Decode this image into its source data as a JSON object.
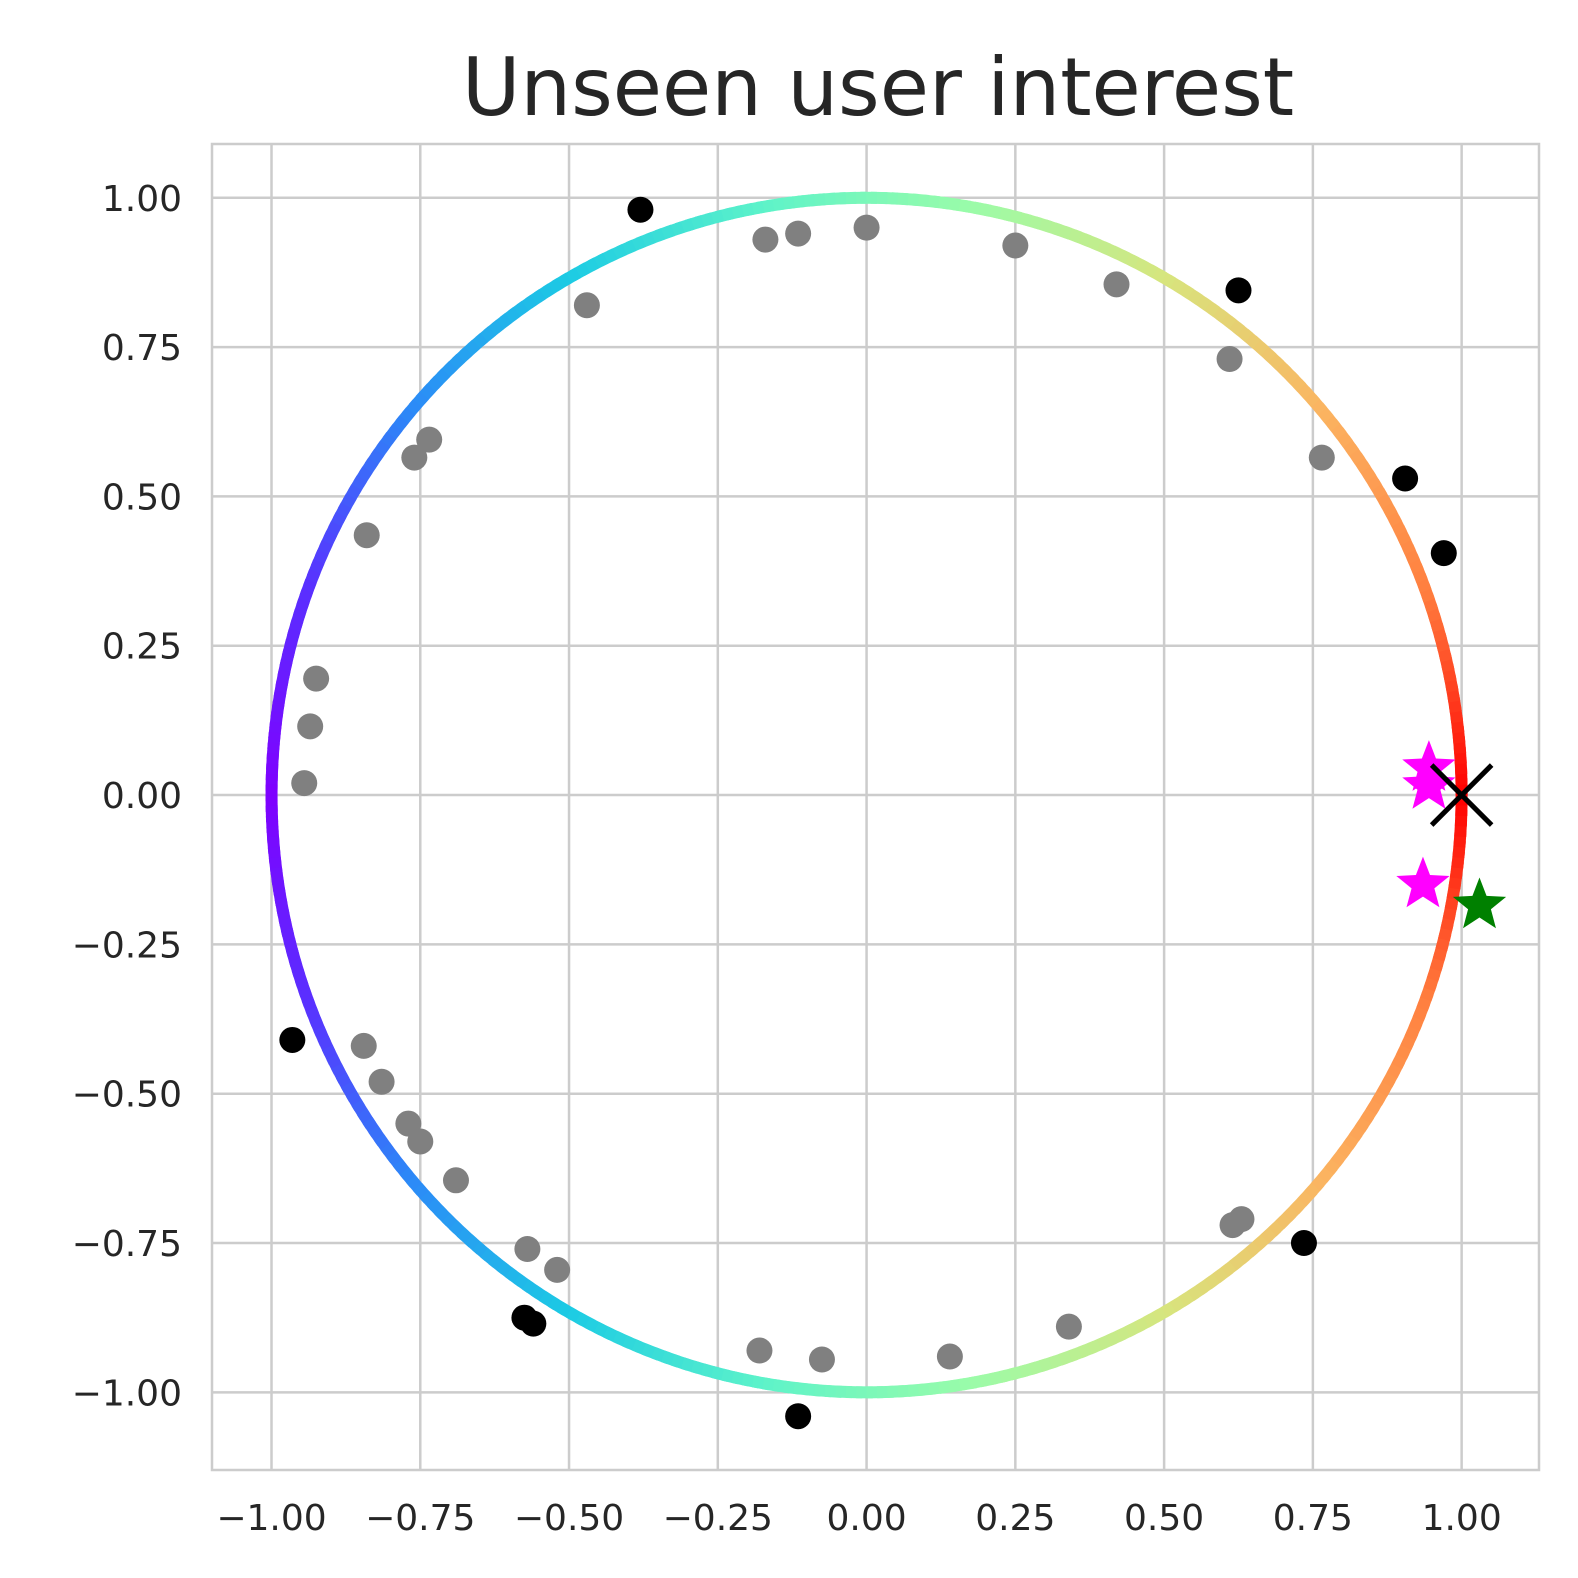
{
  "chart_data": {
    "type": "scatter",
    "title": "Unseen user interest",
    "xlabel": "",
    "ylabel": "",
    "xlim": [
      -1.1,
      1.13
    ],
    "ylim": [
      -1.13,
      1.09
    ],
    "x_ticks": [
      -1.0,
      -0.75,
      -0.5,
      -0.25,
      0.0,
      0.25,
      0.5,
      0.75,
      1.0
    ],
    "y_ticks": [
      1.0,
      0.75,
      0.5,
      0.25,
      0.0,
      -0.25,
      -0.5,
      -0.75,
      -1.0
    ],
    "x_tick_labels": [
      "−1.00",
      "−0.75",
      "−0.50",
      "−0.25",
      "0.00",
      "0.25",
      "0.50",
      "0.75",
      "1.00"
    ],
    "y_tick_labels": [
      "1.00",
      "0.75",
      "0.50",
      "0.25",
      "0.00",
      "−0.25",
      "−0.50",
      "−0.75",
      "−1.00"
    ],
    "grid": true,
    "circle": {
      "center": [
        0,
        0
      ],
      "radius": 1.0,
      "colormap": "rainbow (angle-mapped)",
      "color_stops": [
        "#ff0000",
        "#ff7f3f",
        "#fbb461",
        "#d7e57e",
        "#9afca9",
        "#5df3c9",
        "#1ccbe4",
        "#2c89f7",
        "#5a2fff",
        "#7f00ff"
      ]
    },
    "series": [
      {
        "marker": "circle",
        "color": "#808080",
        "points": [
          [
            0.0,
            0.95
          ],
          [
            -0.115,
            0.94
          ],
          [
            -0.17,
            0.93
          ],
          [
            0.25,
            0.92
          ],
          [
            -0.47,
            0.82
          ],
          [
            0.42,
            0.855
          ],
          [
            0.61,
            0.73
          ],
          [
            0.765,
            0.565
          ],
          [
            -0.735,
            0.595
          ],
          [
            -0.76,
            0.565
          ],
          [
            -0.84,
            0.435
          ],
          [
            -0.925,
            0.195
          ],
          [
            -0.935,
            0.115
          ],
          [
            -0.945,
            0.02
          ],
          [
            -0.845,
            -0.42
          ],
          [
            -0.815,
            -0.48
          ],
          [
            -0.77,
            -0.55
          ],
          [
            -0.75,
            -0.58
          ],
          [
            -0.69,
            -0.645
          ],
          [
            -0.57,
            -0.76
          ],
          [
            -0.52,
            -0.795
          ],
          [
            -0.18,
            -0.93
          ],
          [
            -0.075,
            -0.945
          ],
          [
            0.14,
            -0.94
          ],
          [
            0.34,
            -0.89
          ],
          [
            0.615,
            -0.72
          ],
          [
            0.63,
            -0.71
          ]
        ]
      },
      {
        "marker": "circle",
        "color": "#000000",
        "points": [
          [
            -0.38,
            0.98
          ],
          [
            0.625,
            0.845
          ],
          [
            0.905,
            0.53
          ],
          [
            0.97,
            0.405
          ],
          [
            -0.965,
            -0.41
          ],
          [
            -0.575,
            -0.875
          ],
          [
            -0.56,
            -0.885
          ],
          [
            -0.115,
            -1.04
          ],
          [
            0.735,
            -0.75
          ]
        ]
      },
      {
        "marker": "star",
        "color": "#ff00ff",
        "points": [
          [
            0.945,
            0.045
          ],
          [
            0.945,
            0.015
          ],
          [
            0.935,
            -0.15
          ]
        ]
      },
      {
        "marker": "star",
        "color": "#008000",
        "points": [
          [
            1.03,
            -0.185
          ]
        ]
      },
      {
        "marker": "x",
        "color": "#000000",
        "points": [
          [
            1.0,
            0.0
          ]
        ]
      }
    ]
  }
}
